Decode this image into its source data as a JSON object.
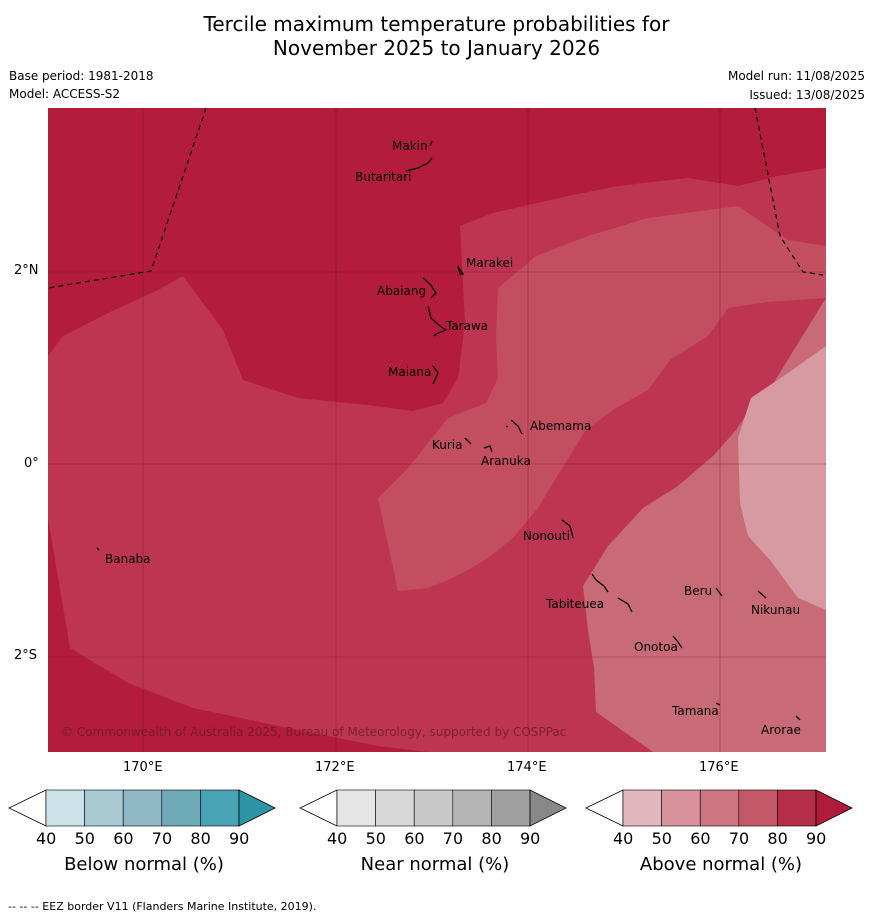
{
  "title_line1": "Tercile maximum temperature probabilities for",
  "title_line2": "November 2025 to January 2026",
  "base_period": "Base period: 1981-2018",
  "model": "Model: ACCESS-S2",
  "model_run": "Model run: 11/08/2025",
  "issued": "Issued: 13/08/2025",
  "lat_ticks": [
    "2°N",
    "0°",
    "2°S"
  ],
  "lon_ticks": [
    "170°E",
    "172°E",
    "174°E",
    "176°E"
  ],
  "places": [
    "Makin",
    "Butaritari",
    "Marakei",
    "Abaiang",
    "Tarawa",
    "Maiana",
    "Abemama",
    "Kuria",
    "Aranuka",
    "Nonouti",
    "Banaba",
    "Beru",
    "Nikunau",
    "Tabiteuea",
    "Onotoa",
    "Tamana",
    "Arorae"
  ],
  "copyright": "© Commonwealth of Australia 2025, Bureau of Meteorology, supported by COSPPac",
  "colorbars": [
    {
      "label": "Below normal (%)",
      "ticks": [
        "40",
        "50",
        "60",
        "70",
        "80",
        "90"
      ],
      "colors": [
        "#ffffff",
        "#cde3ea",
        "#a9c9d3",
        "#8cb9c5",
        "#6eaab8",
        "#48a3b4",
        "#2e95a8"
      ]
    },
    {
      "label": "Near normal (%)",
      "ticks": [
        "40",
        "50",
        "60",
        "70",
        "80",
        "90"
      ],
      "colors": [
        "#ffffff",
        "#e6e6e6",
        "#d8d8d8",
        "#c8c8c8",
        "#b4b4b4",
        "#a0a0a0",
        "#888888"
      ]
    },
    {
      "label": "Above normal (%)",
      "ticks": [
        "40",
        "50",
        "60",
        "70",
        "80",
        "90"
      ],
      "colors": [
        "#ffffff",
        "#e3b7bf",
        "#d8939d",
        "#cd7580",
        "#c35866",
        "#b52e48",
        "#b01b3c"
      ]
    }
  ],
  "footer": "-- -- -- EEZ border V11 (Flanders Marine Institute, 2019).",
  "colors": {
    "band80": "#b31c3a",
    "band70": "#bd3550",
    "band60": "#c24e5f",
    "band50": "#c86b76",
    "band40": "#d79aa3"
  }
}
